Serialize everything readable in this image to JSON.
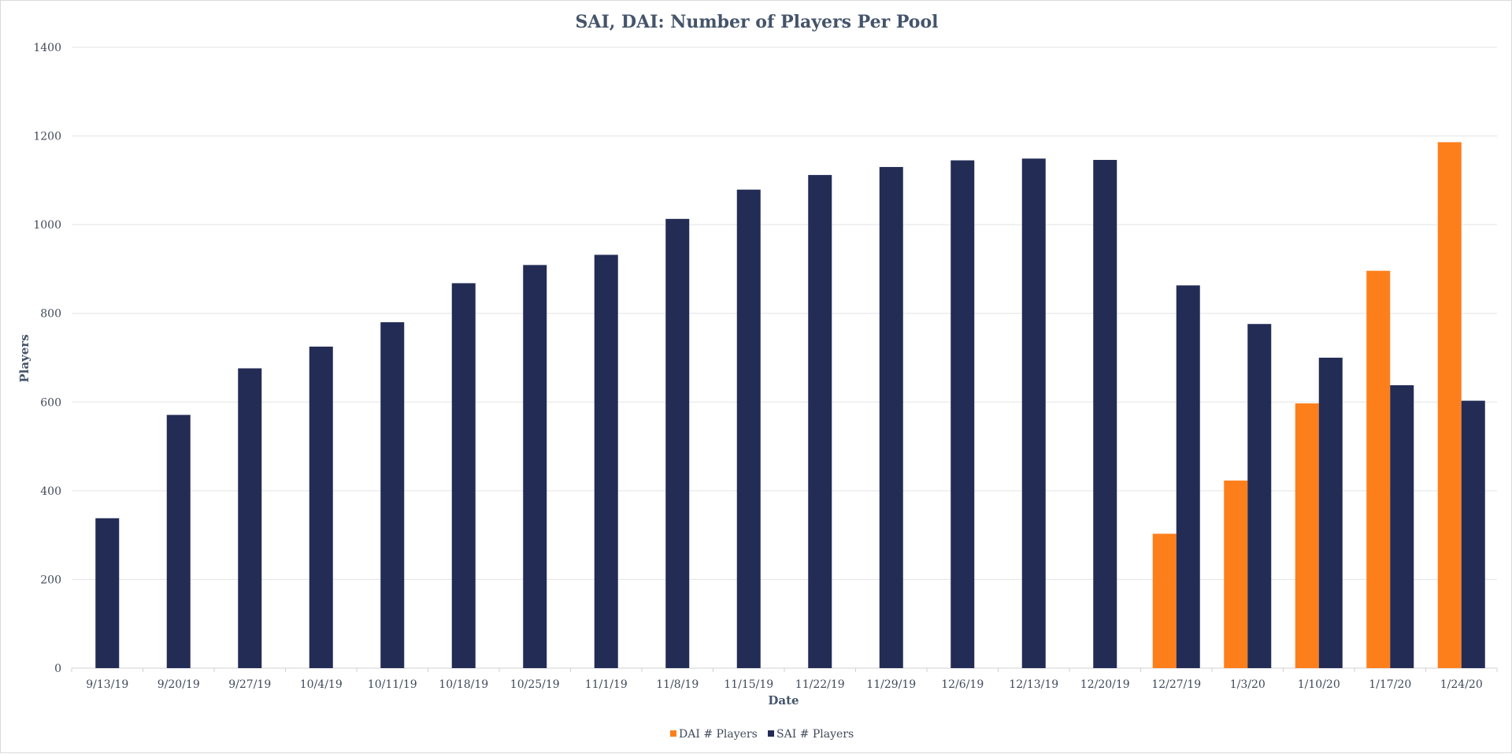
{
  "chart_data": {
    "type": "bar",
    "title": "SAI, DAI: Number of Players Per Pool",
    "xlabel": "Date",
    "ylabel": "Players",
    "ylim": [
      0,
      1400
    ],
    "yticks": [
      0,
      200,
      400,
      600,
      800,
      1000,
      1200,
      1400
    ],
    "grid": true,
    "legend_position": "bottom",
    "categories": [
      "9/13/19",
      "9/20/19",
      "9/27/19",
      "10/4/19",
      "10/11/19",
      "10/18/19",
      "10/25/19",
      "11/1/19",
      "11/8/19",
      "11/15/19",
      "11/22/19",
      "11/29/19",
      "12/6/19",
      "12/13/19",
      "12/20/19",
      "12/27/19",
      "1/3/20",
      "1/10/20",
      "1/17/20",
      "1/24/20"
    ],
    "series": [
      {
        "name": "DAI # Players",
        "color": "#fd7f1c",
        "values": [
          null,
          null,
          null,
          null,
          null,
          null,
          null,
          null,
          null,
          null,
          null,
          null,
          null,
          null,
          null,
          303,
          423,
          597,
          896,
          1186
        ]
      },
      {
        "name": "SAI # Players",
        "color": "#232c55",
        "values": [
          338,
          571,
          676,
          725,
          780,
          868,
          909,
          932,
          1013,
          1079,
          1112,
          1130,
          1145,
          1149,
          1146,
          863,
          776,
          700,
          638,
          603
        ]
      }
    ]
  }
}
